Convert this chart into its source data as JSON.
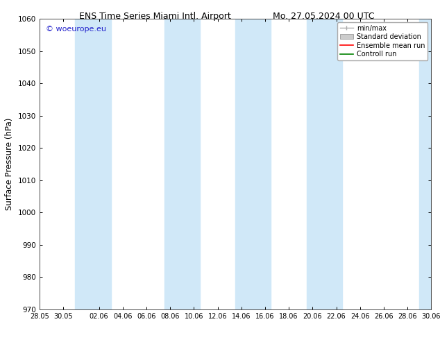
{
  "title_left": "ENS Time Series Miami Intl. Airport",
  "title_right": "Mo. 27.05.2024 00 UTC",
  "ylabel": "Surface Pressure (hPa)",
  "ylim": [
    970,
    1060
  ],
  "yticks": [
    970,
    980,
    990,
    1000,
    1010,
    1020,
    1030,
    1040,
    1050,
    1060
  ],
  "xtick_labels": [
    "28.05",
    "30.05",
    "02.06",
    "04.06",
    "06.06",
    "08.06",
    "10.06",
    "12.06",
    "14.06",
    "16.06",
    "18.06",
    "20.06",
    "22.06",
    "24.06",
    "26.06",
    "28.06",
    "30.06"
  ],
  "xtick_positions": [
    0,
    2,
    5,
    7,
    9,
    11,
    13,
    15,
    17,
    19,
    21,
    23,
    25,
    27,
    29,
    31,
    33
  ],
  "blue_band_centers": [
    4.5,
    12,
    18,
    24,
    33
  ],
  "blue_band_widths": [
    3.0,
    3.0,
    3.0,
    3.0,
    2.0
  ],
  "blue_color": "#d0e8f8",
  "watermark": "© woeurope.eu",
  "watermark_color": "#2222cc",
  "background_color": "#ffffff",
  "legend_items": [
    {
      "label": "min/max",
      "color": "#aaaaaa",
      "style": "errbar"
    },
    {
      "label": "Standard deviation",
      "color": "#cccccc",
      "style": "box"
    },
    {
      "label": "Ensemble mean run",
      "color": "#ff0000",
      "style": "line"
    },
    {
      "label": "Controll run",
      "color": "#008000",
      "style": "line"
    }
  ],
  "x_total_days": 33,
  "figwidth": 6.34,
  "figheight": 4.9,
  "dpi": 100
}
